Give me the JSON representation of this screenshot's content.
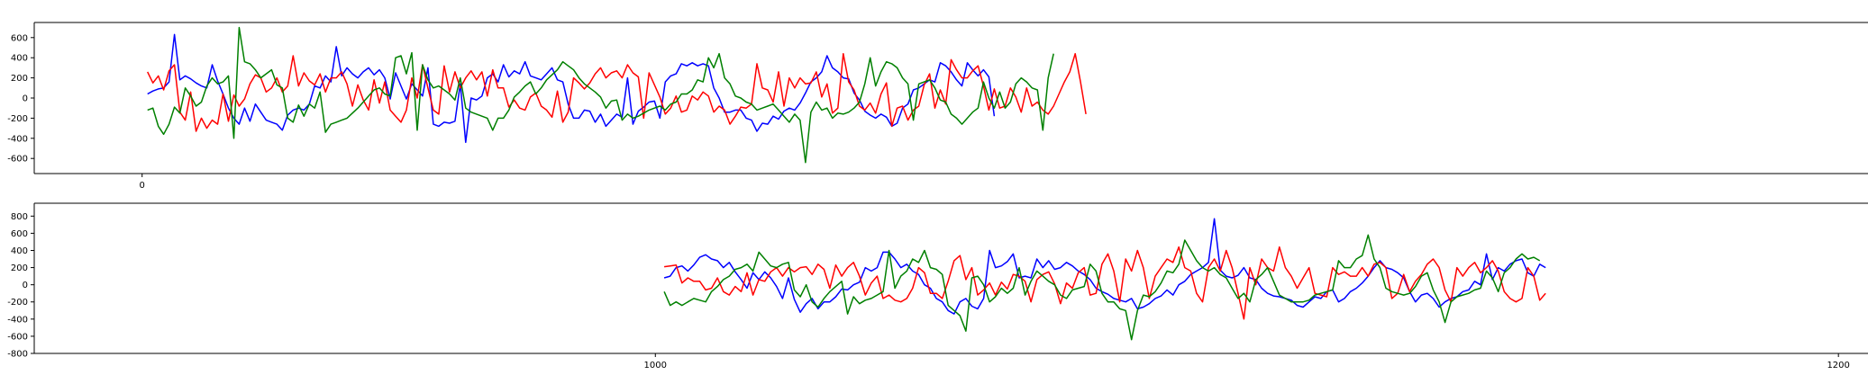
{
  "chart_data": [
    {
      "type": "line",
      "title": "",
      "xlabel": "",
      "ylabel": "",
      "xlim": [
        -2,
        32
      ],
      "ylim": [
        -750,
        750
      ],
      "xticks": [
        0
      ],
      "yticks": [
        -600,
        -400,
        -200,
        0,
        200,
        400,
        600
      ],
      "grid": false,
      "series": [
        {
          "color": "#0000ff",
          "x_start": 0.1,
          "x_step": 0.1,
          "values": [
            40,
            70,
            90,
            100,
            160,
            630,
            180,
            220,
            190,
            150,
            120,
            100,
            330,
            170,
            40,
            -100,
            -200,
            -260,
            -100,
            -230,
            -60,
            -140,
            -220,
            -240,
            -260,
            -320,
            -170,
            -120,
            -100,
            -120,
            -60,
            120,
            100,
            220,
            160,
            510,
            220,
            300,
            240,
            200,
            260,
            300,
            230,
            280,
            200,
            -10,
            250,
            120,
            -10,
            140,
            80,
            20,
            300,
            -260,
            -280,
            -240,
            -250,
            -230,
            140,
            -440,
            0,
            -20,
            20,
            200,
            240,
            160,
            330,
            210,
            270,
            240,
            360,
            220,
            200,
            180,
            240,
            300,
            180,
            160,
            -60,
            -200,
            -200,
            -120,
            -130,
            -240,
            -160,
            -280,
            -220,
            -160,
            -190,
            200,
            -260,
            -130,
            -90,
            -40,
            -30,
            -200,
            160,
            220,
            240,
            340,
            320,
            350,
            320,
            340,
            320,
            100,
            0,
            -140,
            -140,
            -120,
            -120,
            -200,
            -220,
            -330,
            -250,
            -260,
            -180,
            -210,
            -130,
            -100,
            -120,
            -50,
            50,
            160,
            200,
            260,
            420,
            300,
            260,
            200,
            190,
            50,
            -20,
            -130,
            -170,
            -200,
            -160,
            -190,
            -280,
            -250,
            -100,
            -60,
            80,
            100,
            140,
            180,
            160,
            350,
            320,
            260,
            180,
            120,
            350,
            280,
            220,
            280,
            210,
            -180
          ],
          "name": ""
        },
        {
          "color": "#ff0000",
          "x_start": 0.1,
          "x_step": 0.1,
          "values": [
            260,
            150,
            220,
            80,
            270,
            330,
            -140,
            -220,
            60,
            -330,
            -200,
            -300,
            -220,
            -260,
            40,
            -230,
            30,
            -80,
            -10,
            140,
            230,
            200,
            60,
            100,
            200,
            60,
            120,
            420,
            120,
            250,
            170,
            130,
            240,
            60,
            200,
            200,
            260,
            140,
            -80,
            130,
            -20,
            -120,
            180,
            -50,
            160,
            -120,
            -180,
            -240,
            -120,
            200,
            0,
            330,
            100,
            -120,
            -160,
            320,
            60,
            260,
            100,
            200,
            270,
            180,
            260,
            20,
            280,
            100,
            100,
            -90,
            -20,
            -100,
            -120,
            10,
            50,
            -80,
            -120,
            -190,
            70,
            -240,
            -140,
            200,
            150,
            90,
            150,
            240,
            300,
            200,
            250,
            270,
            200,
            330,
            250,
            210,
            -200,
            250,
            130,
            10,
            -160,
            -100,
            20,
            -140,
            -120,
            20,
            -20,
            60,
            20,
            -140,
            -80,
            -120,
            -260,
            -180,
            -90,
            -100,
            -60,
            340,
            100,
            80,
            -40,
            260,
            -80,
            200,
            100,
            200,
            140,
            150,
            260,
            10,
            140,
            -150,
            -100,
            440,
            160,
            80,
            -80,
            -120,
            -50,
            -150,
            40,
            150,
            -280,
            -100,
            -80,
            -220,
            -120,
            -80,
            130,
            240,
            -100,
            80,
            -60,
            380,
            280,
            200,
            200,
            270,
            320,
            120,
            -120,
            90,
            -100,
            -80,
            100,
            10,
            -140,
            100,
            -80,
            -40,
            -120,
            -160,
            -80,
            40,
            160,
            260,
            440,
            160,
            -160
          ],
          "name": ""
        },
        {
          "color": "#008000",
          "x_start": 0.1,
          "x_step": 0.1,
          "values": [
            -120,
            -100,
            -280,
            -360,
            -260,
            -90,
            -150,
            100,
            20,
            -80,
            -40,
            120,
            200,
            140,
            160,
            220,
            -400,
            700,
            360,
            340,
            280,
            200,
            240,
            280,
            130,
            100,
            -200,
            -240,
            -70,
            -180,
            -60,
            -100,
            60,
            -340,
            -260,
            -240,
            -220,
            -200,
            -150,
            -100,
            -40,
            20,
            80,
            100,
            40,
            20,
            400,
            420,
            240,
            450,
            -320,
            330,
            180,
            100,
            120,
            80,
            40,
            -20,
            200,
            -100,
            -140,
            -160,
            -180,
            -200,
            -320,
            -200,
            -200,
            -120,
            10,
            60,
            120,
            160,
            40,
            100,
            180,
            230,
            280,
            360,
            320,
            280,
            200,
            140,
            100,
            60,
            10,
            -100,
            -30,
            -20,
            -220,
            -160,
            -200,
            -180,
            -150,
            -120,
            -100,
            -80,
            -120,
            -60,
            -40,
            40,
            40,
            80,
            180,
            160,
            400,
            300,
            440,
            200,
            140,
            20,
            0,
            -40,
            -60,
            -120,
            -100,
            -80,
            -60,
            -120,
            -180,
            -240,
            -160,
            -220,
            -640,
            -140,
            -40,
            -120,
            -100,
            -200,
            -150,
            -160,
            -140,
            -100,
            -40,
            140,
            400,
            120,
            260,
            360,
            340,
            300,
            200,
            140,
            -220,
            140,
            160,
            180,
            100,
            -20,
            -40,
            -160,
            -200,
            -260,
            -200,
            -140,
            -100,
            160,
            0,
            -100,
            60,
            -100,
            -40,
            140,
            200,
            160,
            100,
            80,
            -320,
            200,
            440
          ],
          "name": ""
        }
      ]
    },
    {
      "type": "line",
      "title": "",
      "xlabel": "",
      "ylabel": "",
      "xlim": [
        895,
        1205
      ],
      "ylim": [
        -800,
        950
      ],
      "xticks": [
        1000,
        1200
      ],
      "yticks": [
        -800,
        -600,
        -400,
        -200,
        0,
        200,
        400,
        600,
        800
      ],
      "grid": false,
      "series": [
        {
          "color": "#0000ff",
          "x_start": 1001.5,
          "x_step": 1,
          "values": [
            80,
            100,
            200,
            220,
            160,
            230,
            320,
            350,
            300,
            280,
            200,
            260,
            150,
            60,
            -40,
            140,
            60,
            150,
            80,
            -20,
            -160,
            80,
            -170,
            -320,
            -220,
            -160,
            -280,
            -200,
            -200,
            -140,
            -50,
            -60,
            0,
            30,
            200,
            160,
            200,
            380,
            380,
            300,
            200,
            240,
            160,
            120,
            0,
            -40,
            -160,
            -200,
            -300,
            -340,
            -200,
            -160,
            -250,
            -280,
            -160,
            400,
            200,
            220,
            270,
            360,
            80,
            100,
            80,
            300,
            200,
            280,
            180,
            200,
            260,
            220,
            160,
            120,
            60,
            -40,
            -80,
            -110,
            -160,
            -180,
            -200,
            -160,
            -280,
            -260,
            -220,
            -160,
            -130,
            -60,
            -120,
            0,
            40,
            120,
            160,
            200,
            260,
            770,
            170,
            100,
            80,
            110,
            200,
            80,
            60,
            -40,
            -100,
            -130,
            -140,
            -160,
            -180,
            -240,
            -260,
            -200,
            -140,
            -160,
            -80,
            -60,
            -200,
            -160,
            -80,
            -40,
            20,
            100,
            200,
            280,
            200,
            180,
            140,
            80,
            -80,
            -200,
            -120,
            -100,
            -160,
            -260,
            -200,
            -160,
            -140,
            -80,
            -60,
            40,
            0,
            360,
            60,
            200,
            160,
            240,
            280,
            300,
            140,
            100,
            240,
            200
          ],
          "name": ""
        },
        {
          "color": "#ff0000",
          "x_start": 1001.5,
          "x_step": 1,
          "values": [
            210,
            220,
            230,
            20,
            80,
            40,
            40,
            -60,
            -40,
            80,
            -80,
            -120,
            -20,
            -80,
            140,
            -120,
            60,
            40,
            150,
            200,
            100,
            200,
            150,
            200,
            210,
            120,
            240,
            180,
            -40,
            230,
            100,
            200,
            260,
            100,
            -120,
            20,
            100,
            -160,
            -120,
            -180,
            -200,
            -160,
            -40,
            200,
            140,
            -100,
            -100,
            -160,
            40,
            280,
            340,
            60,
            200,
            -120,
            -60,
            20,
            -120,
            30,
            -50,
            120,
            100,
            40,
            -200,
            60,
            120,
            150,
            10,
            -220,
            20,
            -40,
            140,
            200,
            -120,
            -100,
            240,
            360,
            160,
            -200,
            300,
            160,
            400,
            200,
            -160,
            100,
            200,
            300,
            260,
            440,
            200,
            160,
            -100,
            -200,
            200,
            300,
            160,
            400,
            200,
            -100,
            -400,
            200,
            0,
            300,
            200,
            160,
            440,
            200,
            100,
            -40,
            80,
            200,
            -100,
            -120,
            -140,
            200,
            120,
            150,
            100,
            100,
            200,
            100,
            240,
            260,
            200,
            -160,
            -100,
            120,
            -80,
            40,
            120,
            240,
            300,
            200,
            -60,
            -200,
            200,
            100,
            200,
            260,
            140,
            200,
            280,
            160,
            -80,
            -160,
            -200,
            -160,
            200,
            100,
            -180,
            -100
          ],
          "name": ""
        },
        {
          "color": "#008000",
          "x_start": 1001.5,
          "x_step": 1,
          "values": [
            -80,
            -240,
            -200,
            -240,
            -200,
            -160,
            -180,
            -200,
            -80,
            -20,
            60,
            100,
            180,
            200,
            240,
            160,
            380,
            300,
            220,
            200,
            240,
            260,
            -60,
            -140,
            0,
            -200,
            -260,
            -160,
            -80,
            -20,
            40,
            -340,
            -140,
            -220,
            -180,
            -160,
            -120,
            -80,
            400,
            -40,
            100,
            160,
            300,
            260,
            400,
            200,
            180,
            120,
            -240,
            -300,
            -360,
            -540,
            80,
            100,
            0,
            -200,
            -140,
            -40,
            -100,
            -40,
            200,
            -120,
            40,
            160,
            100,
            40,
            0,
            -120,
            -160,
            -60,
            -40,
            -20,
            240,
            160,
            -100,
            -200,
            -200,
            -280,
            -300,
            -640,
            -300,
            -120,
            -140,
            -80,
            20,
            160,
            140,
            240,
            520,
            400,
            280,
            200,
            160,
            200,
            120,
            80,
            -40,
            -160,
            -100,
            -200,
            60,
            120,
            200,
            40,
            -120,
            -160,
            -200,
            -200,
            -200,
            -180,
            -120,
            -100,
            -80,
            -60,
            280,
            200,
            200,
            300,
            340,
            580,
            300,
            200,
            -40,
            -80,
            -100,
            -120,
            -100,
            -20,
            100,
            140,
            -60,
            -200,
            -440,
            -200,
            -140,
            -120,
            -100,
            -60,
            -40,
            160,
            80,
            -80,
            140,
            200,
            300,
            360,
            300,
            320,
            280
          ],
          "name": ""
        }
      ]
    }
  ]
}
